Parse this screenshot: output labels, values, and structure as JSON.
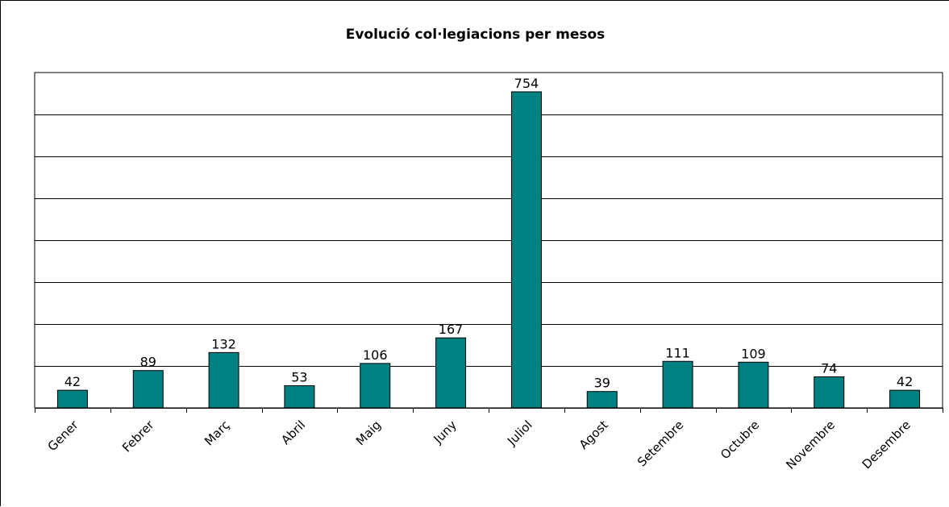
{
  "chart_data": {
    "type": "bar",
    "title": "Evolució col·legiacions per mesos",
    "xlabel": "",
    "ylabel": "",
    "categories": [
      "Gener",
      "Febrer",
      "Març",
      "Abril",
      "Maig",
      "Juny",
      "Juliol",
      "Agost",
      "Setembre",
      "Octubre",
      "Novembre",
      "Desembre"
    ],
    "values": [
      42,
      89,
      132,
      53,
      106,
      167,
      754,
      39,
      111,
      109,
      74,
      42
    ],
    "ylim": [
      0,
      800
    ],
    "grid": true,
    "legend": "none",
    "colors": {
      "bar": "#008080"
    }
  }
}
